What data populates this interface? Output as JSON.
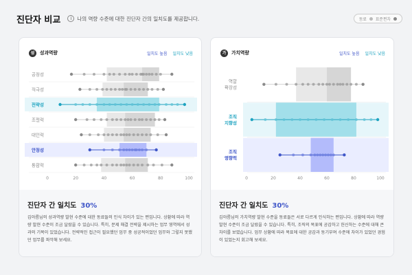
{
  "header": {
    "title": "진단자 비교",
    "subtitle": "나의 역량 수준에 대한 진단자 간의 일치도를 제공합니다.",
    "legend_a": "동료",
    "legend_b": "표준편차"
  },
  "colors": {
    "high": "#3f56c8",
    "low": "#1ea3c0",
    "gray": "#9a9a9a"
  },
  "left_card": {
    "icon": "성",
    "title": "성과역량",
    "legend_high": "일치도 높음",
    "legend_low": "일치도 낮음",
    "ticks": [
      "0",
      "20",
      "40",
      "60",
      "80",
      "100"
    ],
    "rows": [
      {
        "label": "공정성",
        "highlight": "none",
        "range": [
          17,
          88
        ],
        "band": [
          42,
          79
        ],
        "core": [
          67,
          79
        ],
        "points": [
          17,
          26,
          33,
          40,
          44,
          47,
          51,
          55,
          58,
          60,
          63,
          66,
          67,
          68,
          70,
          72,
          74,
          77,
          80,
          88
        ]
      },
      {
        "label": "적극성",
        "highlight": "none",
        "range": [
          23,
          82
        ],
        "band": [
          39,
          71
        ],
        "core": [
          54,
          71
        ],
        "points": [
          23,
          30,
          35,
          39,
          42,
          45,
          48,
          51,
          53,
          55,
          56,
          59,
          62,
          65,
          68,
          71,
          74,
          78,
          82
        ]
      },
      {
        "label": "전략성",
        "highlight": "low",
        "range": [
          9,
          97
        ],
        "band": [
          35,
          79
        ],
        "core": [
          35,
          79
        ],
        "points": [
          9,
          20,
          25,
          30,
          35,
          40,
          44,
          48,
          52,
          56,
          60,
          64,
          68,
          72,
          76,
          79,
          84,
          88,
          92,
          97
        ]
      },
      {
        "label": "조절력",
        "highlight": "none",
        "range": [
          20,
          83
        ],
        "band": [
          42,
          76
        ],
        "core": [
          55,
          76
        ],
        "points": [
          20,
          28,
          33,
          38,
          42,
          46,
          49,
          52,
          55,
          57,
          59,
          62,
          65,
          67,
          70,
          73,
          76,
          79,
          83
        ]
      },
      {
        "label": "대인력",
        "highlight": "none",
        "range": [
          24,
          84
        ],
        "band": [
          40,
          73
        ],
        "core": [
          54,
          73
        ],
        "points": [
          24,
          30,
          36,
          40,
          43,
          46,
          49,
          52,
          54,
          56,
          58,
          61,
          64,
          67,
          70,
          73,
          78,
          84
        ]
      },
      {
        "label": "안정성",
        "highlight": "high",
        "range": [
          30,
          77
        ],
        "band": [
          51,
          70
        ],
        "core": [
          51,
          70
        ],
        "points": [
          30,
          40,
          46,
          51,
          54,
          56,
          58,
          60,
          62,
          63,
          65,
          67,
          70,
          77
        ]
      },
      {
        "label": "통합력",
        "highlight": "none",
        "range": [
          20,
          88
        ],
        "band": [
          38,
          71
        ],
        "core": [
          55,
          71
        ],
        "points": [
          20,
          26,
          31,
          35,
          38,
          42,
          46,
          49,
          52,
          54,
          56,
          58,
          61,
          64,
          67,
          71,
          75,
          81,
          88
        ]
      }
    ],
    "footer_title": "진단자 간 일치도",
    "footer_pct": "30%",
    "footer_body": "김아름님의 성과역량 발현 수준에 대한 동료들의 인식 차이가 있는 편입니다. 상황에 따라 역량 발현 수준이 조금 달랐을 수 있습니다. 특히, 문제 해결 전략을 제시하는 업무 영역에서 성과의 기복이 있었습니다. 전략적인 접근이 필요했던 업무 중 성공적이었던 업무와 그렇지 못했던 업무를 파악해 보세요."
  },
  "right_card": {
    "icon": "가",
    "title": "가치역량",
    "legend_high": "일치도 높음",
    "legend_low": "일치도 낮음",
    "ticks": [
      "0",
      "20",
      "40",
      "60",
      "80",
      "100"
    ],
    "rows": [
      {
        "label": "역할 확장성",
        "label_lines": [
          "역할",
          "확장성"
        ],
        "highlight": "none",
        "range": [
          13,
          87
        ],
        "band": [
          37,
          78
        ],
        "core": [
          60,
          78
        ],
        "points": [
          13,
          22,
          30,
          37,
          42,
          46,
          50,
          54,
          57,
          60,
          62,
          65,
          68,
          70,
          72,
          75,
          78,
          82,
          87
        ]
      },
      {
        "label": "조직 지향성",
        "label_lines": [
          "조직",
          "지향성"
        ],
        "highlight": "low",
        "range": [
          4,
          98
        ],
        "band": [
          22,
          82
        ],
        "core": [
          22,
          82
        ],
        "points": [
          4,
          14,
          22,
          28,
          34,
          40,
          46,
          52,
          58,
          64,
          70,
          76,
          82,
          88,
          93,
          98
        ]
      },
      {
        "label": "조직 영향력",
        "label_lines": [
          "조직",
          "영향력"
        ],
        "highlight": "high",
        "range": [
          25,
          73
        ],
        "band": [
          48,
          65
        ],
        "core": [
          48,
          65
        ],
        "points": [
          25,
          35,
          42,
          48,
          51,
          53,
          55,
          57,
          59,
          61,
          63,
          65,
          73
        ]
      }
    ],
    "footer_title": "진단자 간 일치도",
    "footer_pct": "30%",
    "footer_body": "김아름님의 가치역량 발현 수준을 동료들은 서로 다르게 인식하는 편입니다. 상황에 따라 역량 발현 수준이 조금 달랐을 수 있습니다. 특히, 조직의 목표에 공감하고 헌신하는 수준에 대해 큰 차이를 보였습니다. 업무 상황에 따라 목표에 대한 공감과 동기부여 수준에 차이가 있었던 경험이 있었는지 회고해 보세요."
  }
}
